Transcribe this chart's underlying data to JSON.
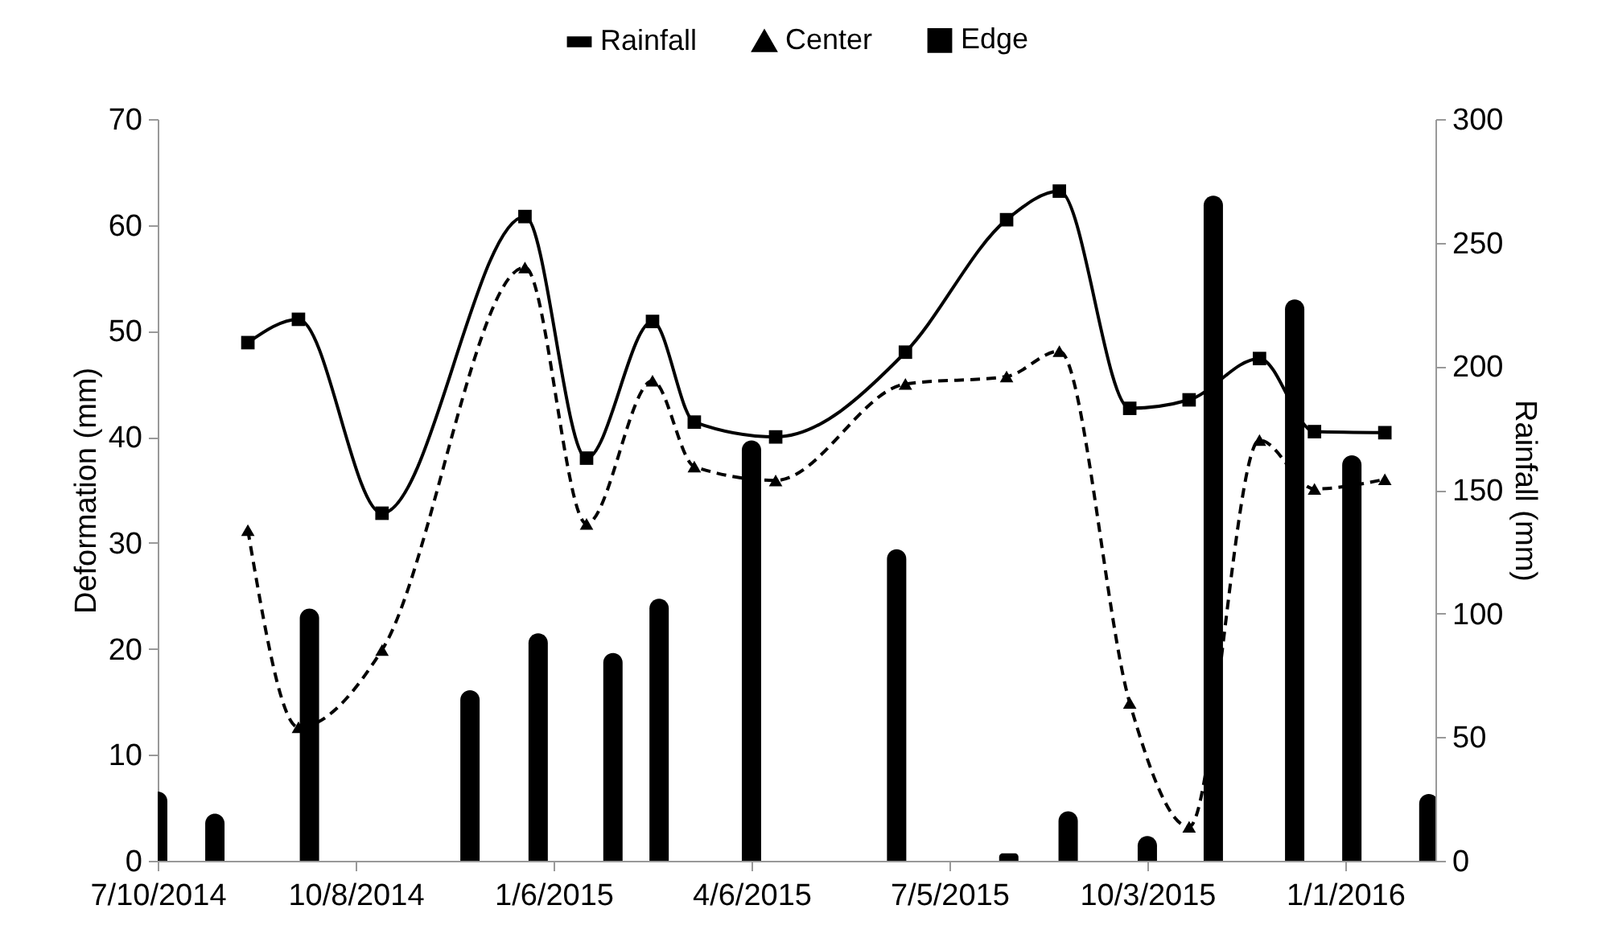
{
  "chart_data": {
    "type": "line",
    "ylabel": "Deformation (mm)",
    "y2label": "Rainfall (mm)",
    "x": [
      "2014-08-20",
      "2014-09-12",
      "2014-10-20",
      "2014-12-24",
      "2015-01-21",
      "2015-02-20",
      "2015-03-11",
      "2015-04-17",
      "2015-06-15",
      "2015-07-31",
      "2015-08-24",
      "2015-09-25",
      "2015-10-22",
      "2015-11-23",
      "2015-12-18",
      "2016-01-19"
    ],
    "series": [
      {
        "name": "Rainfall",
        "type": "bar",
        "axis": "y2",
        "color": "#000000",
        "x": [
          "2014-07-10",
          "2014-08-05",
          "2014-09-17",
          "2014-11-29",
          "2014-12-30",
          "2015-02-02",
          "2015-02-23",
          "2015-04-06",
          "2015-06-11",
          "2015-08-01",
          "2015-08-28",
          "2015-10-03",
          "2015-11-02",
          "2015-12-09",
          "2016-01-04",
          "2016-02-08"
        ],
        "values": [
          28,
          19,
          102,
          69,
          92,
          84,
          106,
          170,
          126,
          3,
          20,
          10,
          269,
          227,
          164,
          27
        ]
      },
      {
        "name": "Center",
        "color": "#000000",
        "line_style": "dashed",
        "marker": "triangle",
        "values": [
          31.2,
          12.6,
          19.9,
          56.0,
          31.8,
          45.3,
          37.2,
          35.9,
          45.0,
          45.7,
          48.1,
          14.9,
          3.2,
          39.7,
          35.1,
          36.0
        ]
      },
      {
        "name": "Edge",
        "color": "#000000",
        "line_style": "solid",
        "marker": "square",
        "values": [
          48.9,
          51.1,
          32.8,
          60.8,
          38.0,
          50.9,
          41.4,
          40.0,
          48.0,
          60.5,
          63.2,
          42.7,
          43.5,
          47.4,
          40.5,
          40.4
        ]
      }
    ],
    "xlim": [
      "2014-07-10",
      "2016-02-11"
    ],
    "xticks": [
      {
        "value": "2014-07-10",
        "label": "7/10/2014"
      },
      {
        "value": "2014-10-08",
        "label": "10/8/2014"
      },
      {
        "value": "2015-01-06",
        "label": "1/6/2015"
      },
      {
        "value": "2015-04-06",
        "label": "4/6/2015"
      },
      {
        "value": "2015-07-05",
        "label": "7/5/2015"
      },
      {
        "value": "2015-10-03",
        "label": "10/3/2015"
      },
      {
        "value": "2016-01-01",
        "label": "1/1/2016"
      }
    ],
    "ylim": [
      0,
      70
    ],
    "yticks": [
      0,
      10,
      20,
      30,
      40,
      50,
      60,
      70
    ],
    "y2lim": [
      0,
      300
    ],
    "y2ticks": [
      0,
      50,
      100,
      150,
      200,
      250,
      300
    ],
    "legend": "top",
    "grid": false
  }
}
